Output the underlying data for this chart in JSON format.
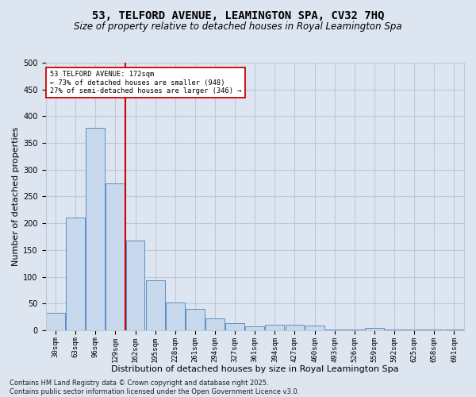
{
  "title": "53, TELFORD AVENUE, LEAMINGTON SPA, CV32 7HQ",
  "subtitle": "Size of property relative to detached houses in Royal Leamington Spa",
  "xlabel": "Distribution of detached houses by size in Royal Leamington Spa",
  "ylabel": "Number of detached properties",
  "categories": [
    "30sqm",
    "63sqm",
    "96sqm",
    "129sqm",
    "162sqm",
    "195sqm",
    "228sqm",
    "261sqm",
    "294sqm",
    "327sqm",
    "361sqm",
    "394sqm",
    "427sqm",
    "460sqm",
    "493sqm",
    "526sqm",
    "559sqm",
    "592sqm",
    "625sqm",
    "658sqm",
    "691sqm"
  ],
  "values": [
    33,
    210,
    378,
    275,
    168,
    93,
    52,
    40,
    22,
    13,
    8,
    11,
    11,
    9,
    2,
    2,
    5,
    1,
    1,
    2,
    2
  ],
  "bar_color": "#c9d9ed",
  "bar_edge_color": "#5b8ec4",
  "grid_color": "#c0c8d8",
  "vline_color": "#cc0000",
  "vline_x_index": 3.5,
  "annotation_text": "53 TELFORD AVENUE: 172sqm\n← 73% of detached houses are smaller (948)\n27% of semi-detached houses are larger (346) →",
  "annotation_box_color": "#ffffff",
  "annotation_box_edge": "#cc0000",
  "footer": "Contains HM Land Registry data © Crown copyright and database right 2025.\nContains public sector information licensed under the Open Government Licence v3.0.",
  "ylim": [
    0,
    500
  ],
  "background_color": "#dde5f0",
  "title_fontsize": 10,
  "subtitle_fontsize": 8.5,
  "axis_label_fontsize": 8,
  "tick_fontsize": 6.5,
  "footer_fontsize": 6
}
